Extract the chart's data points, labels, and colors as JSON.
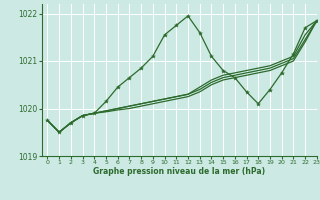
{
  "background_color": "#cce9e4",
  "grid_color": "#ffffff",
  "line_color": "#2d6b2d",
  "marker_color": "#2d6b2d",
  "xlabel": "Graphe pression niveau de la mer (hPa)",
  "xlim": [
    -0.5,
    23
  ],
  "ylim": [
    1019,
    1022.2
  ],
  "yticks": [
    1019,
    1020,
    1021,
    1022
  ],
  "xticks": [
    0,
    1,
    2,
    3,
    4,
    5,
    6,
    7,
    8,
    9,
    10,
    11,
    12,
    13,
    14,
    15,
    16,
    17,
    18,
    19,
    20,
    21,
    22,
    23
  ],
  "series_main": [
    1019.75,
    1019.5,
    1019.7,
    1019.85,
    1019.9,
    1020.15,
    1020.45,
    1020.65,
    1020.85,
    1021.1,
    1021.55,
    1021.75,
    1021.95,
    1021.6,
    1021.1,
    1020.8,
    1020.65,
    1020.35,
    1020.1,
    1020.4,
    1020.75,
    1021.15,
    1021.7,
    1021.85
  ],
  "series_straight": [
    [
      1019.75,
      1019.5,
      1019.7,
      1019.85,
      1019.9,
      1019.95,
      1020.0,
      1020.05,
      1020.1,
      1020.15,
      1020.2,
      1020.25,
      1020.3,
      1020.45,
      1020.6,
      1020.7,
      1020.75,
      1020.8,
      1020.85,
      1020.9,
      1021.0,
      1021.1,
      1021.55,
      1021.85
    ],
    [
      1019.75,
      1019.5,
      1019.7,
      1019.85,
      1019.9,
      1019.95,
      1020.0,
      1020.05,
      1020.1,
      1020.15,
      1020.2,
      1020.25,
      1020.3,
      1020.4,
      1020.55,
      1020.65,
      1020.7,
      1020.75,
      1020.8,
      1020.85,
      1020.95,
      1021.05,
      1021.45,
      1021.85
    ],
    [
      1019.75,
      1019.5,
      1019.7,
      1019.85,
      1019.9,
      1019.93,
      1019.97,
      1020.0,
      1020.05,
      1020.1,
      1020.15,
      1020.2,
      1020.25,
      1020.35,
      1020.5,
      1020.6,
      1020.65,
      1020.7,
      1020.75,
      1020.8,
      1020.9,
      1021.0,
      1021.4,
      1021.85
    ]
  ]
}
